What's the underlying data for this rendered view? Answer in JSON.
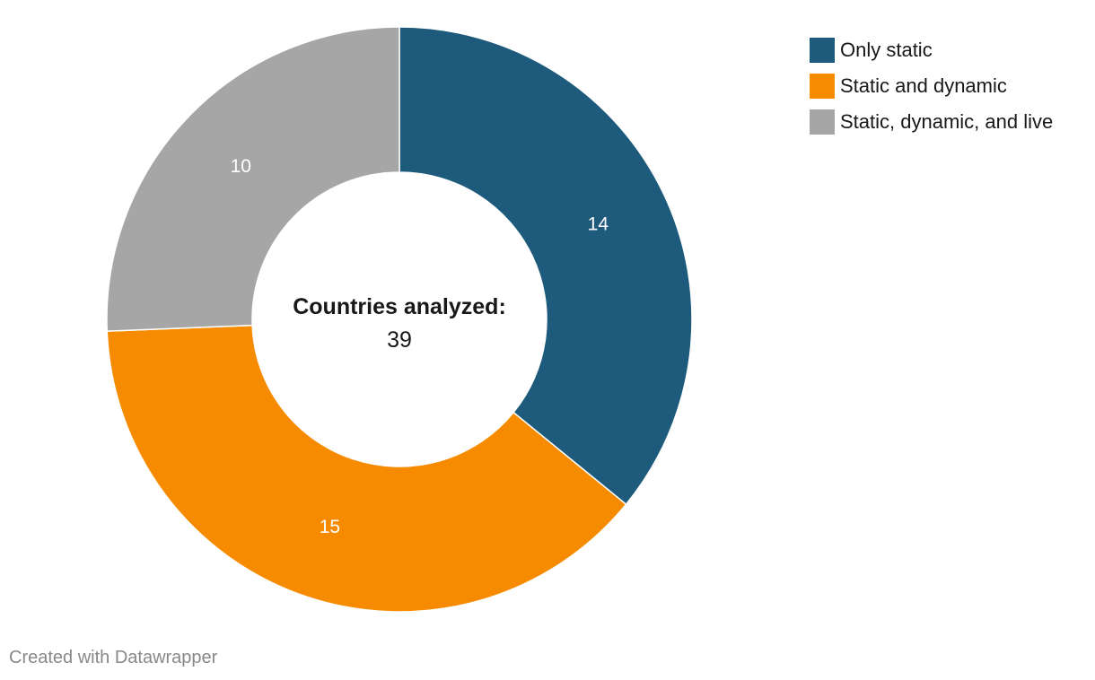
{
  "chart_data": {
    "type": "pie",
    "variant": "donut",
    "categories": [
      "Only static",
      "Static and dynamic",
      "Static, dynamic, and live"
    ],
    "values": [
      14,
      15,
      10
    ],
    "colors": [
      "#1d5a7b",
      "#f78b00",
      "#a6a6a6"
    ],
    "center_title": "Countries analyzed:",
    "center_value": "39",
    "legend_position": "top-right"
  },
  "legend": {
    "items": [
      {
        "label": "Only static",
        "color": "#1d5a7b"
      },
      {
        "label": "Static and dynamic",
        "color": "#f78b00"
      },
      {
        "label": "Static, dynamic, and live",
        "color": "#a6a6a6"
      }
    ]
  },
  "footer": {
    "credit": "Created with Datawrapper"
  }
}
